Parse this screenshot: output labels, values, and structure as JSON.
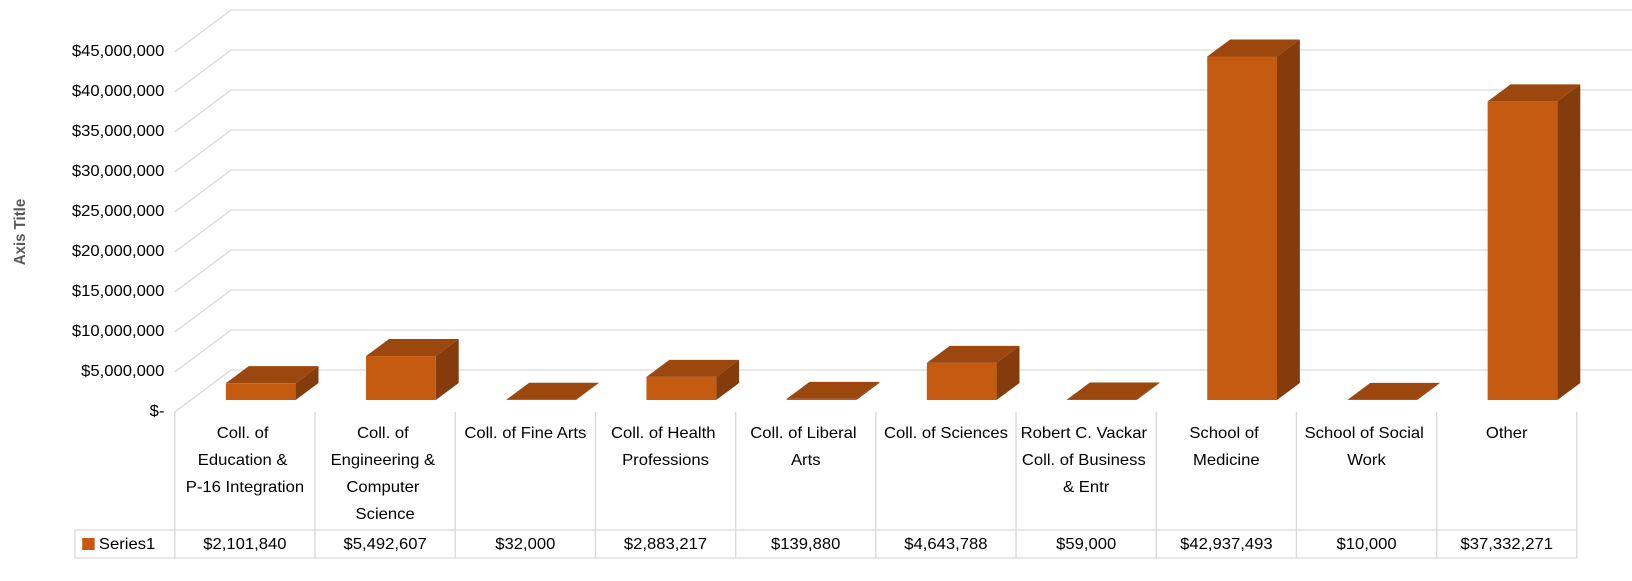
{
  "chart_data": {
    "type": "bar3d",
    "y_axis_label": "Axis Title",
    "categories": [
      "Coll. of Education & P-16 Integration",
      "Coll. of Engineering & Computer Science",
      "Coll. of Fine Arts",
      "Coll. of Health Professions",
      "Coll. of Liberal Arts",
      "Coll. of Sciences",
      "Robert C. Vackar Coll. of Business & Entr",
      "School of Medicine",
      "School of Social Work",
      "Other"
    ],
    "series": [
      {
        "name": "Series1",
        "color": "#c55a11",
        "values": [
          2101840,
          5492607,
          32000,
          2883217,
          139880,
          4643788,
          59000,
          42937493,
          10000,
          37332271
        ],
        "value_labels": [
          "$2,101,840",
          "$5,492,607",
          "$32,000",
          "$2,883,217",
          "$139,880",
          "$4,643,788",
          "$59,000",
          "$42,937,493",
          "$10,000",
          "$37,332,271"
        ]
      }
    ],
    "ylim": [
      0,
      45000000
    ],
    "yticks": [
      {
        "value": 0,
        "label": "$-"
      },
      {
        "value": 5000000,
        "label": "$5,000,000"
      },
      {
        "value": 10000000,
        "label": "$10,000,000"
      },
      {
        "value": 15000000,
        "label": "$15,000,000"
      },
      {
        "value": 20000000,
        "label": "$20,000,000"
      },
      {
        "value": 25000000,
        "label": "$25,000,000"
      },
      {
        "value": 30000000,
        "label": "$30,000,000"
      },
      {
        "value": 35000000,
        "label": "$35,000,000"
      },
      {
        "value": 40000000,
        "label": "$40,000,000"
      },
      {
        "value": 45000000,
        "label": "$45,000,000"
      }
    ],
    "grid": true,
    "data_table": true
  }
}
